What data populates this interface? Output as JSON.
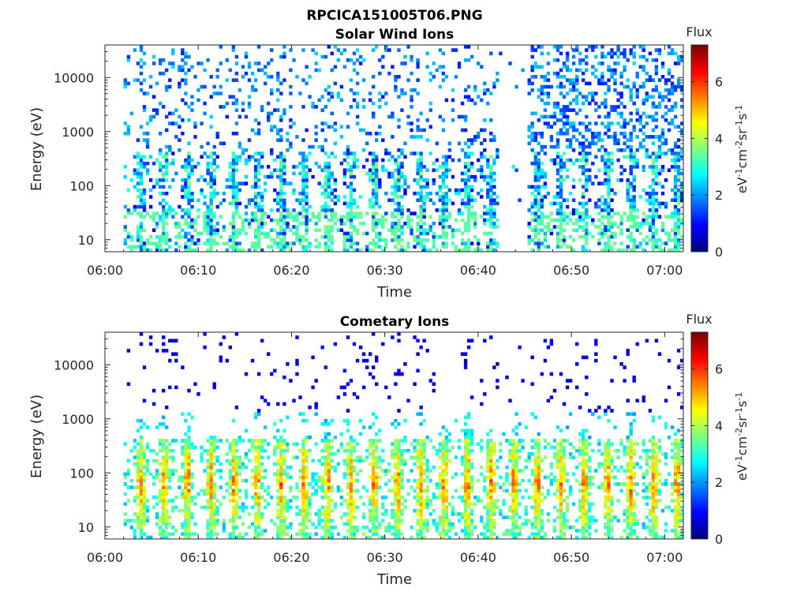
{
  "figure": {
    "filename_title": "RPCICA151005T06.PNG"
  },
  "chart_data": [
    {
      "type": "heatmap",
      "title": "Solar Wind Ions",
      "xlabel": "Time",
      "ylabel": "Energy (eV)",
      "x_ticks": [
        "06:00",
        "06:10",
        "06:20",
        "06:30",
        "06:40",
        "06:50",
        "07:00"
      ],
      "xlim": [
        "06:00",
        "07:02"
      ],
      "y_ticks": [
        "10",
        "100",
        "1000",
        "10000"
      ],
      "ylim": [
        6,
        40000
      ],
      "y_scale": "log",
      "colorbar": {
        "label_top": "Flux",
        "unit": "eV-1cm-2sr-1s-1",
        "ticks": [
          "0",
          "2",
          "4",
          "6"
        ],
        "range": [
          0,
          7.3
        ],
        "colormap": "jet"
      },
      "data_gap": [
        "06:43",
        "06:45"
      ],
      "description_values": {
        "dominant_flux": [
          1,
          4
        ],
        "energy_band_peak_eV": [
          30,
          300
        ]
      }
    },
    {
      "type": "heatmap",
      "title": "Cometary Ions",
      "xlabel": "Time",
      "ylabel": "Energy (eV)",
      "x_ticks": [
        "06:00",
        "06:10",
        "06:20",
        "06:30",
        "06:40",
        "06:50",
        "07:00"
      ],
      "xlim": [
        "06:00",
        "07:02"
      ],
      "y_ticks": [
        "10",
        "100",
        "1000",
        "10000"
      ],
      "ylim": [
        6,
        40000
      ],
      "y_scale": "log",
      "colorbar": {
        "label_top": "Flux",
        "unit": "eV-1cm-2sr-1s-1",
        "ticks": [
          "0",
          "2",
          "4",
          "6"
        ],
        "range": [
          0,
          7.3
        ],
        "colormap": "jet"
      },
      "description_values": {
        "dominant_flux": [
          3,
          6
        ],
        "energy_band_peak_eV": [
          20,
          300
        ]
      }
    }
  ]
}
